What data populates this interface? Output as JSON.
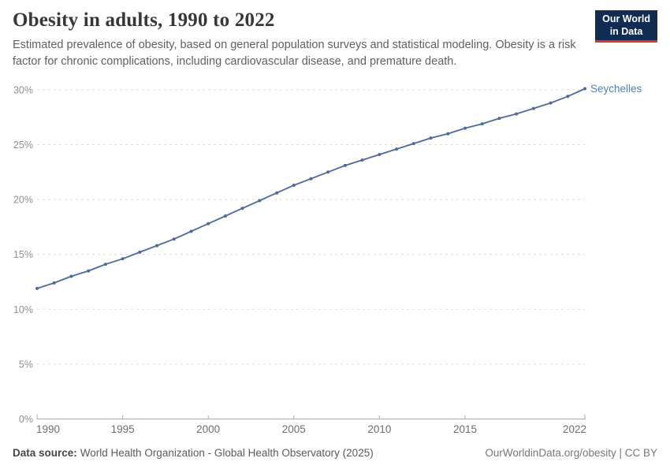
{
  "header": {
    "title": "Obesity in adults, 1990 to 2022",
    "subtitle": "Estimated prevalence of obesity, based on general population surveys and statistical modeling. Obesity is a risk factor for chronic complications, including cardiovascular disease, and premature death."
  },
  "logo": {
    "line1": "Our World",
    "line2": "in Data",
    "bg_color": "#102C50",
    "accent_color": "#E0352C"
  },
  "chart_data": {
    "type": "line",
    "title": "Obesity in adults, 1990 to 2022",
    "xlabel": "",
    "ylabel": "",
    "unit": "%",
    "grid": true,
    "legend_position": "end-of-line-label",
    "xlim": [
      1990,
      2022
    ],
    "ylim": [
      0,
      30
    ],
    "xticks": [
      1990,
      1995,
      2000,
      2005,
      2010,
      2015,
      2022
    ],
    "yticks": [
      {
        "value": 0,
        "label": "0%"
      },
      {
        "value": 5,
        "label": "5%"
      },
      {
        "value": 10,
        "label": "10%"
      },
      {
        "value": 15,
        "label": "15%"
      },
      {
        "value": 20,
        "label": "20%"
      },
      {
        "value": 25,
        "label": "25%"
      },
      {
        "value": 30,
        "label": "30%"
      }
    ],
    "x": [
      1990,
      1991,
      1992,
      1993,
      1994,
      1995,
      1996,
      1997,
      1998,
      1999,
      2000,
      2001,
      2002,
      2003,
      2004,
      2005,
      2006,
      2007,
      2008,
      2009,
      2010,
      2011,
      2012,
      2013,
      2014,
      2015,
      2016,
      2017,
      2018,
      2019,
      2020,
      2021,
      2022
    ],
    "series": [
      {
        "name": "Seychelles",
        "color": "#4C6A9C",
        "values": [
          11.9,
          12.4,
          13.0,
          13.5,
          14.1,
          14.6,
          15.2,
          15.8,
          16.4,
          17.1,
          17.8,
          18.5,
          19.2,
          19.9,
          20.6,
          21.3,
          21.9,
          22.5,
          23.1,
          23.6,
          24.1,
          24.6,
          25.1,
          25.6,
          26.0,
          26.5,
          26.9,
          27.4,
          27.8,
          28.3,
          28.8,
          29.4,
          30.1
        ]
      }
    ],
    "colors": {
      "line": "#4C6A9C",
      "entity_label": "#577CB0",
      "gridline": "#DCDCDC",
      "axis": "#A8A8A8",
      "y_tick_label": "#8F8F8F",
      "x_tick_label": "#6D6D6D"
    }
  },
  "footer": {
    "source_label": "Data source:",
    "source_text": "World Health Organization - Global Health Observatory (2025)",
    "right_text": "OurWorldinData.org/obesity | CC BY"
  }
}
